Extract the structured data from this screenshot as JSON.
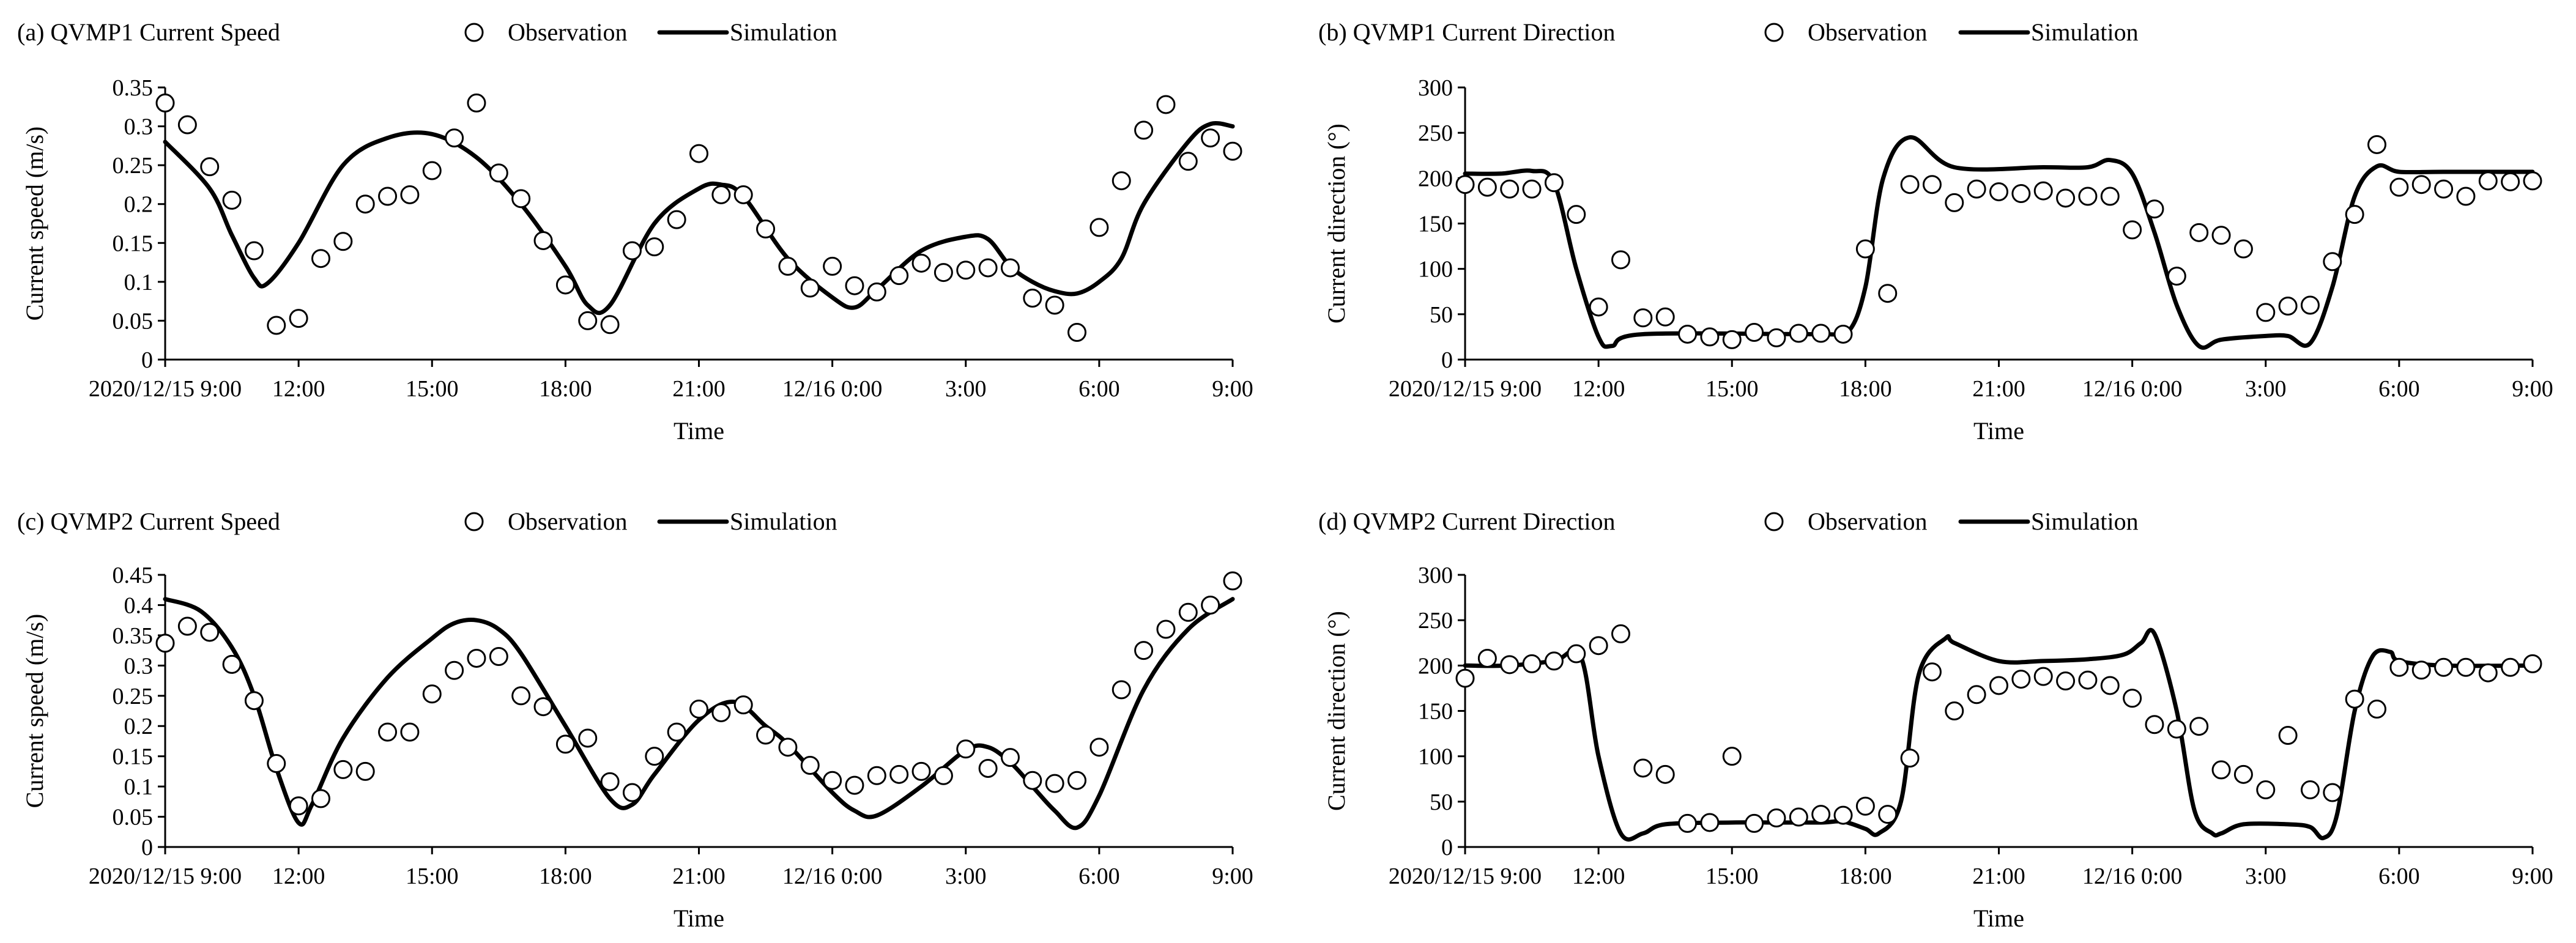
{
  "figure": {
    "legend_labels": {
      "observation": "Observation",
      "simulation": "Simulation"
    }
  },
  "chart_data": [
    {
      "id": "a",
      "type": "line",
      "title": "(a) QVMP1 Current Speed",
      "xlabel": "Time",
      "ylabel": "Current speed (m/s)",
      "xlim": [
        0,
        24
      ],
      "ylim": [
        0,
        0.35
      ],
      "yticks": [
        0,
        0.05,
        0.1,
        0.15,
        0.2,
        0.25,
        0.3,
        0.35
      ],
      "ytick_labels": [
        "0",
        "0.05",
        "0.1",
        "0.15",
        "0.2",
        "0.25",
        "0.3",
        "0.35"
      ],
      "xtick_labels": [
        "2020/12/15 9:00",
        "12:00",
        "15:00",
        "18:00",
        "21:00",
        "12/16 0:00",
        "3:00",
        "6:00",
        "9:00"
      ],
      "xtick_positions": [
        0,
        3,
        6,
        9,
        12,
        15,
        18,
        21,
        24
      ],
      "series": [
        {
          "name": "Observation",
          "style": "markers",
          "x": [
            0,
            0.5,
            1,
            1.5,
            2,
            2.5,
            3,
            3.5,
            4,
            4.5,
            5,
            5.5,
            6,
            6.5,
            7,
            7.5,
            8,
            8.5,
            9,
            9.5,
            10,
            10.5,
            11,
            11.5,
            12,
            12.5,
            13,
            13.5,
            14,
            14.5,
            15,
            15.5,
            16,
            16.5,
            17,
            17.5,
            18,
            18.5,
            19,
            19.5,
            20,
            20.5,
            21,
            21.5,
            22,
            22.5,
            23,
            23.5,
            24
          ],
          "y": [
            0.33,
            0.302,
            0.248,
            0.205,
            0.14,
            0.044,
            0.053,
            0.13,
            0.152,
            0.2,
            0.21,
            0.212,
            0.243,
            0.285,
            0.33,
            0.24,
            0.207,
            0.153,
            0.096,
            0.05,
            0.045,
            0.14,
            0.145,
            0.18,
            0.265,
            0.212,
            0.212,
            0.168,
            0.12,
            0.092,
            0.12,
            0.095,
            0.087,
            0.108,
            0.124,
            0.112,
            0.115,
            0.118,
            0.118,
            0.079,
            0.07,
            0.035,
            0.17,
            0.23,
            0.295,
            0.328,
            0.255,
            0.285,
            0.268
          ]
        },
        {
          "name": "Simulation",
          "style": "line",
          "x": [
            0,
            1,
            1.5,
            2,
            2.3,
            3,
            4,
            5,
            6,
            7,
            8,
            9,
            9.5,
            10,
            11,
            12,
            12.5,
            13,
            14,
            15,
            15.5,
            16,
            17,
            18,
            18.5,
            19,
            19.5,
            20,
            20.5,
            21,
            21.5,
            22,
            23,
            23.5,
            24
          ],
          "y": [
            0.28,
            0.22,
            0.16,
            0.105,
            0.098,
            0.15,
            0.25,
            0.285,
            0.29,
            0.26,
            0.2,
            0.12,
            0.07,
            0.07,
            0.175,
            0.22,
            0.225,
            0.21,
            0.13,
            0.08,
            0.067,
            0.09,
            0.14,
            0.158,
            0.155,
            0.12,
            0.1,
            0.088,
            0.085,
            0.1,
            0.13,
            0.2,
            0.28,
            0.303,
            0.3
          ]
        }
      ]
    },
    {
      "id": "b",
      "type": "line",
      "title": "(b) QVMP1 Current Direction",
      "xlabel": "Time",
      "ylabel": "Current direction (°)",
      "xlim": [
        0,
        24
      ],
      "ylim": [
        0,
        300
      ],
      "yticks": [
        0,
        50,
        100,
        150,
        200,
        250,
        300
      ],
      "ytick_labels": [
        "0",
        "50",
        "100",
        "150",
        "200",
        "250",
        "300"
      ],
      "xtick_labels": [
        "2020/12/15 9:00",
        "12:00",
        "15:00",
        "18:00",
        "21:00",
        "12/16 0:00",
        "3:00",
        "6:00",
        "9:00"
      ],
      "xtick_positions": [
        0,
        3,
        6,
        9,
        12,
        15,
        18,
        21,
        24
      ],
      "series": [
        {
          "name": "Observation",
          "style": "markers",
          "x": [
            0,
            0.5,
            1,
            1.5,
            2,
            2.5,
            3,
            3.5,
            4,
            4.5,
            5,
            5.5,
            6,
            6.5,
            7,
            7.5,
            8,
            8.5,
            9,
            9.5,
            10,
            10.5,
            11,
            11.5,
            12,
            12.5,
            13,
            13.5,
            14,
            14.5,
            15,
            15.5,
            16,
            16.5,
            17,
            17.5,
            18,
            18.5,
            19,
            19.5,
            20,
            20.5,
            21,
            21.5,
            22,
            22.5,
            23,
            23.5,
            24
          ],
          "y": [
            193,
            190,
            188,
            188,
            195,
            160,
            58,
            110,
            46,
            47,
            28,
            25,
            22,
            30,
            24,
            29,
            29,
            28,
            122,
            73,
            193,
            193,
            173,
            188,
            185,
            183,
            186,
            178,
            180,
            180,
            143,
            166,
            92,
            140,
            137,
            122,
            52,
            59,
            60,
            108,
            160,
            237,
            190,
            193,
            188,
            180,
            197,
            196,
            197
          ]
        },
        {
          "name": "Simulation",
          "style": "line",
          "x": [
            0,
            0.8,
            1.5,
            2,
            2.5,
            3,
            3.3,
            4,
            8,
            8.6,
            9,
            9.4,
            10,
            11,
            13,
            14,
            14.5,
            15,
            15.5,
            16,
            16.5,
            17,
            18,
            18.5,
            19,
            19.5,
            20,
            20.5,
            21,
            22,
            24
          ],
          "y": [
            205,
            205,
            208,
            195,
            100,
            25,
            15,
            28,
            28,
            30,
            80,
            200,
            245,
            212,
            212,
            212,
            220,
            205,
            140,
            60,
            15,
            22,
            26,
            26,
            18,
            80,
            180,
            213,
            207,
            207,
            207
          ]
        }
      ]
    },
    {
      "id": "c",
      "type": "line",
      "title": "(c) QVMP2 Current Speed",
      "xlabel": "Time",
      "ylabel": "Current speed (m/s)",
      "xlim": [
        0,
        24
      ],
      "ylim": [
        0,
        0.45
      ],
      "yticks": [
        0,
        0.05,
        0.1,
        0.15,
        0.2,
        0.25,
        0.3,
        0.35,
        0.4,
        0.45
      ],
      "ytick_labels": [
        "0",
        "0.05",
        "0.1",
        "0.15",
        "0.2",
        "0.25",
        "0.3",
        "0.35",
        "0.4",
        "0.45"
      ],
      "xtick_labels": [
        "2020/12/15 9:00",
        "12:00",
        "15:00",
        "18:00",
        "21:00",
        "12/16 0:00",
        "3:00",
        "6:00",
        "9:00"
      ],
      "xtick_positions": [
        0,
        3,
        6,
        9,
        12,
        15,
        18,
        21,
        24
      ],
      "series": [
        {
          "name": "Observation",
          "style": "markers",
          "x": [
            0,
            0.5,
            1,
            1.5,
            2,
            2.5,
            3,
            3.5,
            4,
            4.5,
            5,
            5.5,
            6,
            6.5,
            7,
            7.5,
            8,
            8.5,
            9,
            9.5,
            10,
            10.5,
            11,
            11.5,
            12,
            12.5,
            13,
            13.5,
            14,
            14.5,
            15,
            15.5,
            16,
            16.5,
            17,
            17.5,
            18,
            18.5,
            19,
            19.5,
            20,
            20.5,
            21,
            21.5,
            22,
            22.5,
            23,
            23.5,
            24
          ],
          "y": [
            0.337,
            0.365,
            0.355,
            0.302,
            0.242,
            0.138,
            0.068,
            0.08,
            0.128,
            0.125,
            0.19,
            0.19,
            0.253,
            0.292,
            0.312,
            0.315,
            0.25,
            0.232,
            0.17,
            0.18,
            0.108,
            0.09,
            0.15,
            0.19,
            0.228,
            0.222,
            0.235,
            0.185,
            0.165,
            0.135,
            0.11,
            0.102,
            0.118,
            0.12,
            0.125,
            0.118,
            0.162,
            0.13,
            0.148,
            0.11,
            0.105,
            0.11,
            0.165,
            0.26,
            0.325,
            0.36,
            0.388,
            0.4,
            0.44
          ]
        },
        {
          "name": "Simulation",
          "style": "line",
          "x": [
            0,
            0.8,
            1.5,
            2,
            2.5,
            3,
            3.3,
            4,
            5,
            6,
            6.5,
            7,
            7.5,
            8,
            9,
            10,
            10.5,
            11,
            12,
            12.8,
            13.5,
            14,
            15,
            15.5,
            16,
            17,
            18,
            18.5,
            19,
            19.5,
            20,
            20.5,
            21,
            22,
            23,
            24
          ],
          "y": [
            0.41,
            0.39,
            0.33,
            0.25,
            0.13,
            0.04,
            0.07,
            0.18,
            0.28,
            0.345,
            0.37,
            0.375,
            0.36,
            0.32,
            0.2,
            0.08,
            0.07,
            0.12,
            0.21,
            0.24,
            0.2,
            0.17,
            0.09,
            0.06,
            0.052,
            0.1,
            0.16,
            0.165,
            0.14,
            0.1,
            0.06,
            0.032,
            0.085,
            0.26,
            0.36,
            0.41
          ]
        }
      ]
    },
    {
      "id": "d",
      "type": "line",
      "title": "(d) QVMP2 Current Direction",
      "xlabel": "Time",
      "ylabel": "Current direction (°)",
      "xlim": [
        0,
        24
      ],
      "ylim": [
        0,
        300
      ],
      "yticks": [
        0,
        50,
        100,
        150,
        200,
        250,
        300
      ],
      "ytick_labels": [
        "0",
        "50",
        "100",
        "150",
        "200",
        "250",
        "300"
      ],
      "xtick_labels": [
        "2020/12/15 9:00",
        "12:00",
        "15:00",
        "18:00",
        "21:00",
        "12/16 0:00",
        "3:00",
        "6:00",
        "9:00"
      ],
      "xtick_positions": [
        0,
        3,
        6,
        9,
        12,
        15,
        18,
        21,
        24
      ],
      "series": [
        {
          "name": "Observation",
          "style": "markers",
          "x": [
            0,
            0.5,
            1,
            1.5,
            2,
            2.5,
            3,
            3.5,
            4,
            4.5,
            5,
            5.5,
            6,
            6.5,
            7,
            7.5,
            8,
            8.5,
            9,
            9.5,
            10,
            10.5,
            11,
            11.5,
            12,
            12.5,
            13,
            13.5,
            14,
            14.5,
            15,
            15.5,
            16,
            16.5,
            17,
            17.5,
            18,
            18.5,
            19,
            19.5,
            20,
            20.5,
            21,
            21.5,
            22,
            22.5,
            23,
            23.5,
            24
          ],
          "y": [
            186,
            208,
            201,
            202,
            205,
            213,
            222,
            235,
            87,
            80,
            26,
            27,
            100,
            26,
            32,
            33,
            36,
            35,
            45,
            36,
            98,
            193,
            150,
            168,
            178,
            185,
            188,
            183,
            184,
            178,
            164,
            135,
            130,
            133,
            85,
            80,
            63,
            123,
            63,
            60,
            163,
            152,
            198,
            195,
            198,
            198,
            192,
            198,
            202
          ]
        },
        {
          "name": "Simulation",
          "style": "line",
          "x": [
            0,
            1,
            2,
            2.6,
            3,
            3.5,
            4,
            4.5,
            6,
            7,
            8,
            8.5,
            9,
            9.3,
            9.8,
            10.2,
            10.8,
            11,
            12,
            13,
            14,
            14.8,
            15.2,
            15.5,
            16,
            16.4,
            16.8,
            17,
            17.5,
            18.5,
            19,
            19.3,
            19.6,
            20,
            20.4,
            20.8,
            21,
            22,
            24
          ],
          "y": [
            200,
            200,
            205,
            210,
            100,
            15,
            15,
            25,
            27,
            27,
            27,
            28,
            20,
            15,
            50,
            190,
            230,
            225,
            205,
            205,
            207,
            212,
            225,
            235,
            150,
            40,
            15,
            15,
            25,
            25,
            22,
            10,
            35,
            150,
            210,
            215,
            205,
            200,
            200
          ]
        }
      ]
    }
  ]
}
